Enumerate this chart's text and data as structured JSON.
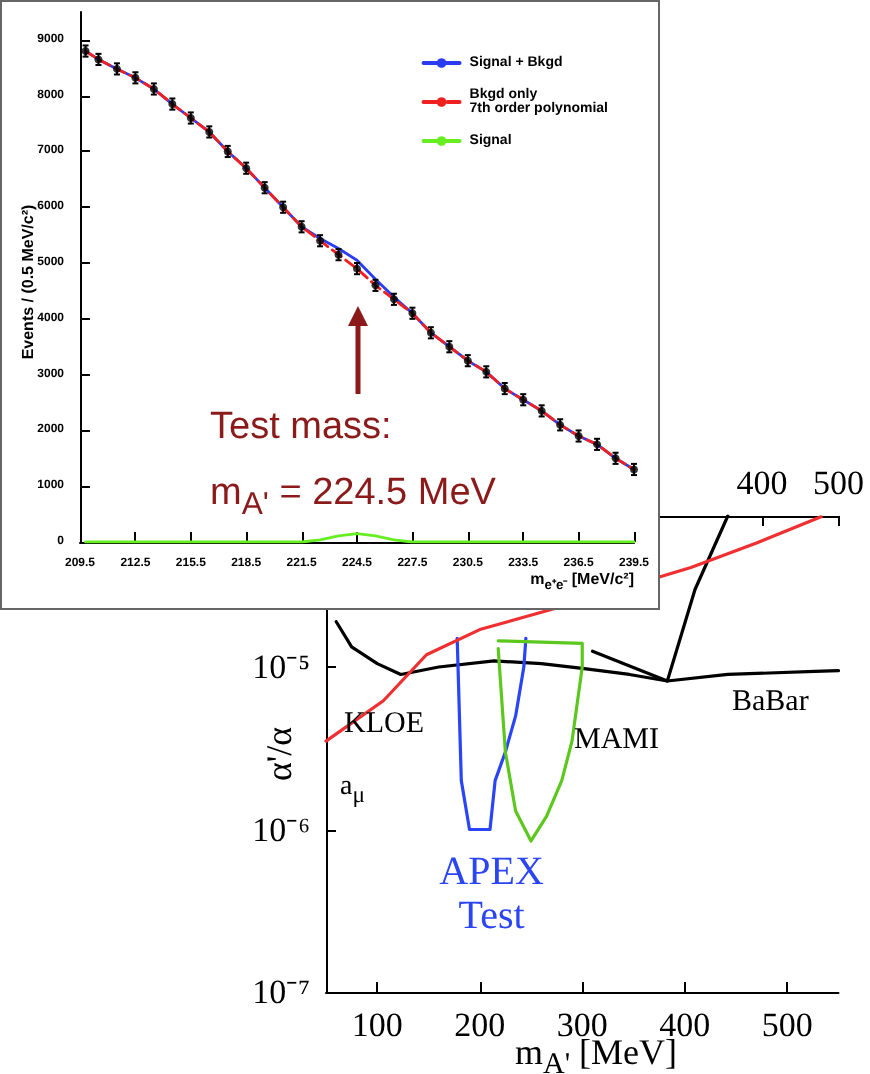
{
  "chart_data": [
    {
      "type": "line",
      "xlabel": "m$_{A'}$ [MeV]",
      "ylabel": "α'/α",
      "xlim": [
        50,
        550
      ],
      "xticks": [
        100,
        200,
        300,
        400,
        500
      ],
      "x2lim": [
        -170,
        500
      ],
      "x2ticks": [
        400,
        500
      ],
      "ylim": [
        1e-07,
        8.5e-05
      ],
      "yticks": [
        {
          "value": 1e-07,
          "label": "10⁻⁷"
        },
        {
          "value": 1e-06,
          "label": "10⁻⁶"
        },
        {
          "value": 1e-05,
          "label": "10⁻⁵"
        }
      ],
      "log": "y",
      "marker": "none",
      "series": [
        {
          "color": "#000000",
          "x": [
            60,
            75,
            100,
            123,
            160,
            214,
            260,
            300,
            346,
            383,
            442,
            527,
            550
          ],
          "values": [
            1.9e-05,
            1.33e-05,
            1.05e-05,
            9e-06,
            1e-05,
            1.09e-05,
            1.05e-05,
            9.8e-06,
            9e-06,
            8.2e-06,
            9e-06,
            9.4e-06,
            9.5e-06
          ]
        },
        {
          "color": "#000000",
          "x": [
            310,
            383,
            410,
            442
          ],
          "values": [
            1.25e-05,
            8.2e-06,
            3e-05,
            8.5e-05
          ]
        },
        {
          "name": "APEX\nTest",
          "color": "#2a45f5",
          "x": [
            178,
            182,
            190,
            200,
            210,
            215,
            225,
            235,
            243,
            245
          ],
          "values": [
            1.5e-05,
            2e-06,
            1e-06,
            1e-06,
            1e-06,
            2e-06,
            3e-06,
            5e-06,
            1e-05,
            1.5e-05
          ]
        },
        {
          "color": "#5cc81e",
          "x": [
            218,
            225,
            235,
            250,
            265,
            280,
            290,
            300,
            300,
            218
          ],
          "values": [
            1.3e-05,
            3e-06,
            1.3e-06,
            8.5e-07,
            1.2e-06,
            2e-06,
            3.5e-06,
            1e-05,
            1.4e-05,
            1.45e-05
          ]
        },
        {
          "color": "#f03030",
          "x": [
            50,
            106,
            148,
            200,
            274,
            406,
            470,
            533
          ],
          "values": [
            3.5e-06,
            6.2e-06,
            1.19e-05,
            1.7e-05,
            2.3e-05,
            4.1e-05,
            5.8e-05,
            8.4e-05
          ]
        }
      ],
      "annotations": [
        "KLOE",
        "MAMI",
        "BaBar",
        "a$_{μ}$"
      ]
    },
    {
      "type": "scatter",
      "xlabel": "m$_{e⁺e⁻}$ [MeV/c²]",
      "ylabel": "Events / (0.5 MeV/c²)",
      "xlim": [
        209.5,
        239.5
      ],
      "xticks": [
        209.5,
        212.5,
        215.5,
        218.5,
        221.5,
        224.5,
        227.5,
        230.5,
        233.5,
        236.5,
        239.5
      ],
      "ylim": [
        0,
        9500
      ],
      "yticks": [
        0,
        1000,
        2000,
        3000,
        4000,
        5000,
        6000,
        7000,
        8000,
        9000
      ],
      "legend": "top right",
      "marker": "none",
      "x": [
        209.8,
        210.5,
        211.5,
        212.5,
        213.5,
        214.5,
        215.5,
        216.5,
        217.5,
        218.5,
        219.5,
        220.5,
        221.5,
        222.5,
        223.5,
        224.5,
        225.5,
        226.5,
        227.5,
        228.5,
        229.5,
        230.5,
        231.5,
        232.5,
        233.5,
        234.5,
        235.5,
        236.5,
        237.5,
        238.5,
        239.5
      ],
      "series": [
        {
          "color": "#000000",
          "marker": "circle",
          "values": [
            8800,
            8650,
            8480,
            8320,
            8120,
            7850,
            7600,
            7350,
            7000,
            6700,
            6350,
            6000,
            5650,
            5400,
            5150,
            4900,
            4600,
            4350,
            4100,
            3750,
            3500,
            3250,
            3050,
            2750,
            2550,
            2350,
            2100,
            1900,
            1750,
            1500,
            1300
          ],
          "errors": [
            100,
            100,
            100,
            100,
            100,
            100,
            100,
            100,
            100,
            100,
            100,
            100,
            100,
            100,
            100,
            100,
            100,
            100,
            100,
            100,
            100,
            100,
            100,
            100,
            100,
            100,
            100,
            100,
            100,
            100,
            100
          ]
        },
        {
          "name": "Signal + Bkgd",
          "type": "line",
          "color": "#2a3cf0",
          "values": [
            8800,
            8650,
            8480,
            8320,
            8120,
            7850,
            7600,
            7350,
            7000,
            6700,
            6350,
            6000,
            5650,
            5440,
            5260,
            5050,
            4710,
            4390,
            4100,
            3750,
            3500,
            3250,
            3050,
            2750,
            2550,
            2350,
            2100,
            1900,
            1750,
            1500,
            1300
          ]
        },
        {
          "name": "Bkgd only\n7th order polynomial",
          "type": "line",
          "color": "#f02020",
          "line_style": "dashed",
          "values": [
            8800,
            8650,
            8480,
            8320,
            8120,
            7850,
            7600,
            7350,
            7000,
            6700,
            6350,
            6000,
            5650,
            5400,
            5150,
            4900,
            4600,
            4350,
            4100,
            3750,
            3500,
            3250,
            3050,
            2750,
            2550,
            2350,
            2100,
            1900,
            1750,
            1500,
            1300
          ]
        },
        {
          "name": "Signal",
          "type": "line",
          "color": "#66ee22",
          "values": [
            0,
            0,
            0,
            0,
            0,
            0,
            0,
            0,
            0,
            0,
            0,
            0,
            0,
            40,
            110,
            150,
            110,
            40,
            0,
            0,
            0,
            0,
            0,
            0,
            0,
            0,
            0,
            0,
            0,
            0,
            0
          ]
        }
      ],
      "annotations": [
        "Test mass:\nm$_{A'}$ = 224.5 MeV"
      ]
    }
  ]
}
